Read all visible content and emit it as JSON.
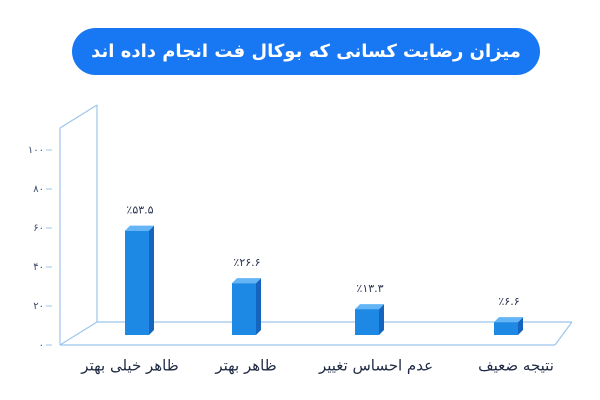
{
  "chart_data": {
    "type": "bar3d",
    "title": "میزان رضایت کسانی که بوکال فت انجام داده اند",
    "categories": [
      "ظاهر خیلی بهتر",
      "ظاهر بهتر",
      "عدم احساس تغییر",
      "نتیجه ضعیف"
    ],
    "values": [
      53.5,
      26.6,
      13.3,
      6.6
    ],
    "value_labels": [
      "٪۵۳.۵",
      "٪۲۶.۶",
      "٪۱۳.۳",
      "٪۶.۶"
    ],
    "color": "#1e88e5",
    "ylim": [
      0,
      100
    ],
    "yticks": [
      {
        "value": 0,
        "label": "۰"
      },
      {
        "value": 20,
        "label": "۲۰"
      },
      {
        "value": 40,
        "label": "۴۰"
      },
      {
        "value": 60,
        "label": "۶۰"
      },
      {
        "value": 80,
        "label": "۸۰"
      },
      {
        "value": 100,
        "label": "۱۰۰"
      }
    ]
  }
}
